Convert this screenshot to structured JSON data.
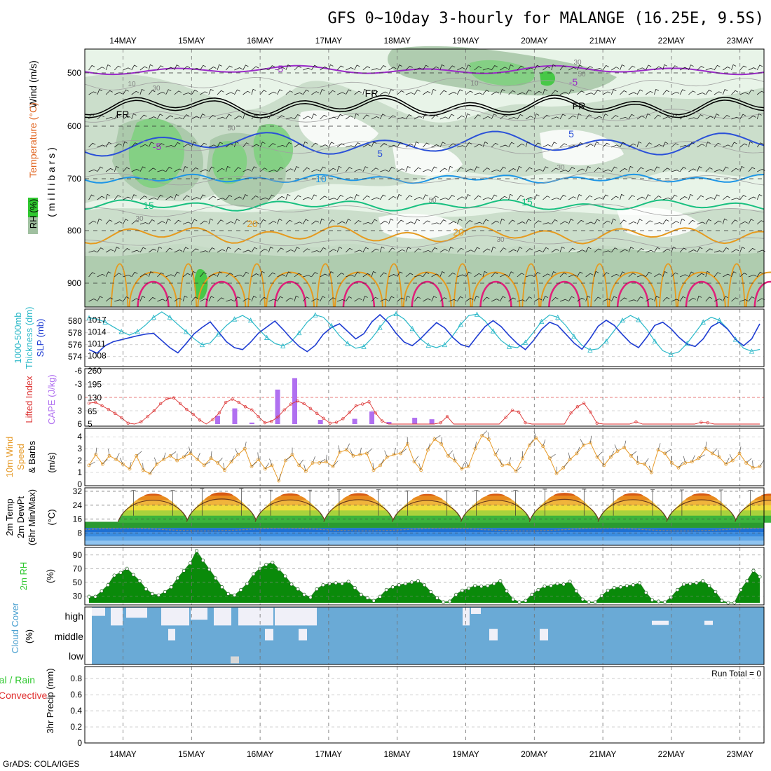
{
  "title": "GFS 0~10day 3-hourly for MALANGE (16.25E, 9.5S)",
  "footer": "GrADS: COLA/IGES",
  "dates": [
    "14MAY",
    "15MAY",
    "16MAY",
    "17MAY",
    "18MAY",
    "19MAY",
    "20MAY",
    "21MAY",
    "22MAY",
    "23MAY"
  ],
  "colors": {
    "rh": [
      "#e8f4e8",
      "#c8dcc8",
      "#a8c8a8",
      "#7fd07f",
      "#3cc83c"
    ],
    "temp_minus5": "#9a2ac8",
    "temp_freeze": "#000000",
    "temp_5": "#2a50d8",
    "temp_10": "#1e96e6",
    "temp_15": "#18c080",
    "temp_20": "#e69a1e",
    "temp_25": "#e0603c",
    "temp_30": "#e0207a",
    "thickness": "#2ab8c8",
    "slp": "#1e3cd2",
    "lifted": "#dc3232",
    "cape": "#b070f0",
    "wind10": "#e69a28",
    "dewpt": "#808080",
    "rh2": "#30c830",
    "cloud": "#6aaad6",
    "cloud_clear": "#f0f0f8"
  },
  "chart_data": [
    {
      "panel": "upper-air",
      "type": "heatmap",
      "labels": {
        "wind": "Wind (m/s)",
        "temperature": "Temperature (°C)",
        "rh": "RH (%)",
        "pressure_axis": "( m i l l i b a r s )"
      },
      "y_ticks": [
        500,
        600,
        700,
        800,
        900
      ],
      "contour_labels": [
        "-5",
        "-5",
        "FR",
        "FR",
        "FR",
        "5",
        "5",
        "-5",
        "10",
        "15",
        "15",
        "20",
        "20",
        "10",
        "30",
        "50",
        "50",
        "30",
        "30",
        "50",
        "30",
        "10",
        "30"
      ],
      "x_dates": [
        "14MAY",
        "15MAY",
        "16MAY",
        "17MAY",
        "18MAY",
        "19MAY",
        "20MAY",
        "21MAY",
        "22MAY",
        "23MAY"
      ]
    },
    {
      "panel": "thickness-slp",
      "type": "line",
      "labels": {
        "thickness": "1000-500mb Thickness (dm)",
        "slp": "SLP (mb)"
      },
      "left_ticks": [
        "580",
        "578",
        "576",
        "574"
      ],
      "right_ticks": [
        "1017",
        "1014",
        "1011",
        "1008"
      ],
      "series": [
        {
          "name": "Thickness",
          "values": [
            580.5,
            580.3,
            579.8,
            579.0,
            578.2,
            577.6,
            578.2,
            579.3,
            580.6,
            581.5,
            580.6,
            579.4,
            578.2,
            577.0,
            576.0,
            576.3,
            577.8,
            579.2,
            580.3,
            580.9,
            580.1,
            578.6,
            577.2,
            576.2,
            575.8,
            576.5,
            578.0,
            579.8,
            581.0,
            580.6,
            579.2,
            577.5,
            576.2,
            575.4,
            575.7,
            577.1,
            578.9,
            580.6,
            581.2,
            580.3,
            578.7,
            577.0,
            575.9,
            575.5,
            576.0,
            577.5,
            579.4,
            580.9,
            581.1,
            580.0,
            578.3,
            576.7,
            575.7,
            575.5,
            576.4,
            578.1,
            579.9,
            581.0,
            580.6,
            579.2,
            577.4,
            575.9,
            575.1,
            575.3,
            576.6,
            578.4,
            580.1,
            580.9,
            580.2,
            578.6,
            576.6,
            575.0,
            574.4,
            574.8,
            576.2,
            578.0,
            579.8,
            580.6,
            580.1,
            578.7,
            576.9,
            575.4,
            574.9,
            575.2
          ]
        },
        {
          "name": "SLP",
          "values": [
            1009.5,
            1008.6,
            1010.5,
            1011.5,
            1012.0,
            1012.5,
            1013.0,
            1013.4,
            1013.6,
            1011.8,
            1010.0,
            1008.7,
            1011.0,
            1013.5,
            1015.1,
            1016.5,
            1014.0,
            1011.5,
            1010.0,
            1009.5,
            1011.4,
            1013.7,
            1015.2,
            1016.7,
            1014.6,
            1012.3,
            1010.3,
            1009.0,
            1010.6,
            1013.4,
            1015.1,
            1016.0,
            1014.1,
            1012.2,
            1013.5,
            1016.5,
            1018.3,
            1016.4,
            1013.6,
            1011.4,
            1010.5,
            1012.2,
            1014.3,
            1016.3,
            1015.0,
            1012.6,
            1010.8,
            1010.2,
            1012.8,
            1015.3,
            1016.8,
            1015.3,
            1013.0,
            1011.0,
            1009.5,
            1011.8,
            1014.6,
            1016.4,
            1015.6,
            1013.4,
            1011.2,
            1009.6,
            1012.3,
            1015.4,
            1016.9,
            1015.6,
            1013.3,
            1011.2,
            1010.0,
            1012.6,
            1015.6,
            1016.4,
            1014.8,
            1012.6,
            1010.9,
            1010.3,
            1012.2,
            1015.3,
            1016.4,
            1014.7,
            1012.1,
            1010.5,
            1012.2,
            1016.0
          ]
        }
      ]
    },
    {
      "panel": "stability",
      "type": "bar",
      "labels": {
        "lifted": "Lifted Index",
        "cape": "CAPE (J/kg)"
      },
      "left_ticks": [
        "-6",
        "-3",
        "0",
        "3",
        "6"
      ],
      "right_ticks": [
        "260",
        "195",
        "130",
        "65",
        "5"
      ],
      "cape_bars": [
        {
          "step": 15,
          "value": 45
        },
        {
          "step": 17,
          "value": 80
        },
        {
          "step": 19,
          "value": 12
        },
        {
          "step": 22,
          "value": 170
        },
        {
          "step": 24,
          "value": 225
        },
        {
          "step": 27,
          "value": 25
        },
        {
          "step": 31,
          "value": 30
        },
        {
          "step": 33,
          "value": 65
        },
        {
          "step": 35,
          "value": 15
        },
        {
          "step": 38,
          "value": 35
        },
        {
          "step": 40,
          "value": 28
        }
      ],
      "lifted_index": [
        1.3,
        1.1,
        1.9,
        2.7,
        3.6,
        4.6,
        5.8,
        6.0,
        5.5,
        4.3,
        3.0,
        1.4,
        0.3,
        0.1,
        1.4,
        2.7,
        3.8,
        5.1,
        6.0,
        5.0,
        3.5,
        1.1,
        0.4,
        1.1,
        2.1,
        2.8,
        4.3,
        5.7,
        5.4,
        4.4,
        2.8,
        1.5,
        0.8,
        1.4,
        2.5,
        3.6,
        4.7,
        5.8,
        5.6,
        4.8,
        3.4,
        1.9,
        1.5,
        1.0,
        3.5,
        5.3,
        6.0,
        6.0,
        6.0,
        6.0,
        6.0,
        6.0,
        6.0,
        6.0,
        5.7,
        4.3,
        6.0,
        6.0,
        6.0,
        6.0,
        6.0,
        6.0,
        6.0,
        6.0,
        4.5,
        2.9,
        3.3,
        5.7,
        6.0,
        6.0,
        6.0,
        6.0,
        6.0,
        6.0,
        3.5,
        2.1,
        1.3,
        3.3,
        5.8,
        6.0,
        6.0,
        6.0,
        6.0,
        6.0,
        5.5,
        6.0,
        6.0,
        6.0,
        6.0,
        6.0,
        6.0,
        6.0,
        6.0,
        6.0,
        5.6,
        5.7,
        6.0,
        6.0,
        6.0,
        6.0,
        6.0,
        6.0,
        6.0,
        6.0
      ]
    },
    {
      "panel": "wind10m",
      "type": "line",
      "labels": {
        "title": "10m Wind Speed & Barbs (m/s)"
      },
      "left_ticks": [
        "4",
        "3",
        "2",
        "1",
        "0"
      ],
      "series": [
        {
          "name": "10m wind speed",
          "values": [
            1.6,
            2.5,
            1.7,
            2.4,
            2.1,
            1.7,
            1.3,
            2.4,
            1.2,
            0.9,
            1.7,
            2.1,
            2.4,
            2.0,
            2.3,
            2.6,
            2.1,
            1.6,
            2.2,
            1.8,
            1.2,
            1.9,
            2.5,
            3.0,
            1.5,
            2.1,
            1.3,
            1.6,
            0.3,
            2.0,
            2.5,
            1.6,
            1.1,
            1.8,
            1.8,
            1.9,
            1.5,
            2.7,
            2.9,
            2.4,
            2.5,
            2.6,
            1.2,
            1.6,
            2.3,
            2.5,
            2.6,
            3.4,
            1.9,
            1.2,
            2.9,
            3.8,
            3.4,
            2.4,
            2.0,
            1.3,
            1.5,
            3.0,
            4.1,
            3.8,
            2.5,
            1.6,
            1.7,
            1.1,
            2.2,
            3.3,
            3.9,
            3.2,
            2.2,
            0.9,
            1.4,
            2.1,
            2.6,
            3.3,
            3.5,
            2.3,
            1.6,
            2.3,
            2.8,
            3.1,
            2.4,
            1.8,
            1.7,
            1.0,
            2.9,
            2.6,
            1.8,
            1.4,
            1.8,
            1.9,
            2.2,
            3.0,
            2.6,
            2.3,
            1.7,
            2.0,
            2.6,
            1.8,
            1.4,
            1.5
          ]
        }
      ]
    },
    {
      "panel": "temperature2m",
      "type": "area",
      "labels": {
        "title": "2m Temp 2m DewPt (6hr Min/Max) (°C)"
      },
      "left_ticks": [
        "32",
        "24",
        "16",
        "8"
      ],
      "temp_min": 14.5,
      "temp_max_days": [
        31.0,
        32.0,
        31.2,
        31.4,
        30.8,
        31.0,
        31.7,
        31.4,
        31.3,
        31.0
      ],
      "dewpt": 9.8
    },
    {
      "panel": "rh2m",
      "type": "area",
      "labels": {
        "title": "2m RH (%)"
      },
      "left_ticks": [
        "90",
        "70",
        "50",
        "30"
      ],
      "series": [
        {
          "name": "2m RH",
          "values": [
            29,
            29,
            37,
            46,
            60,
            64,
            70,
            61,
            52,
            40,
            33,
            31,
            36,
            43,
            56,
            67,
            78,
            96,
            82,
            69,
            56,
            43,
            33,
            31,
            39,
            48,
            62,
            70,
            76,
            79,
            69,
            59,
            47,
            40,
            32,
            28,
            40,
            46,
            48,
            49,
            48,
            51,
            42,
            32,
            27,
            23,
            29,
            39,
            43,
            46,
            48,
            50,
            52,
            46,
            36,
            27,
            21,
            22,
            32,
            38,
            41,
            45,
            44,
            45,
            48,
            52,
            37,
            25,
            21,
            23,
            32,
            39,
            44,
            45,
            48,
            47,
            51,
            37,
            25,
            21,
            21,
            30,
            38,
            42,
            43,
            45,
            46,
            49,
            35,
            24,
            22,
            21,
            28,
            39,
            47,
            48,
            49,
            52,
            45,
            36,
            23,
            20,
            20,
            39,
            52,
            67,
            58
          ]
        }
      ]
    },
    {
      "panel": "cloud",
      "type": "heatmap",
      "labels": {
        "title": "Cloud Cover (%)"
      },
      "rows": [
        "high",
        "middle",
        "low"
      ]
    },
    {
      "panel": "precip",
      "type": "bar",
      "labels": {
        "title": "3hr Precip (mm)",
        "total": "Total / Rain",
        "convective": "Convective",
        "run_total": "Run Total = 0"
      },
      "left_ticks": [
        "0.8",
        "0.6",
        "0.4",
        "0.2",
        "0"
      ],
      "values": []
    }
  ]
}
